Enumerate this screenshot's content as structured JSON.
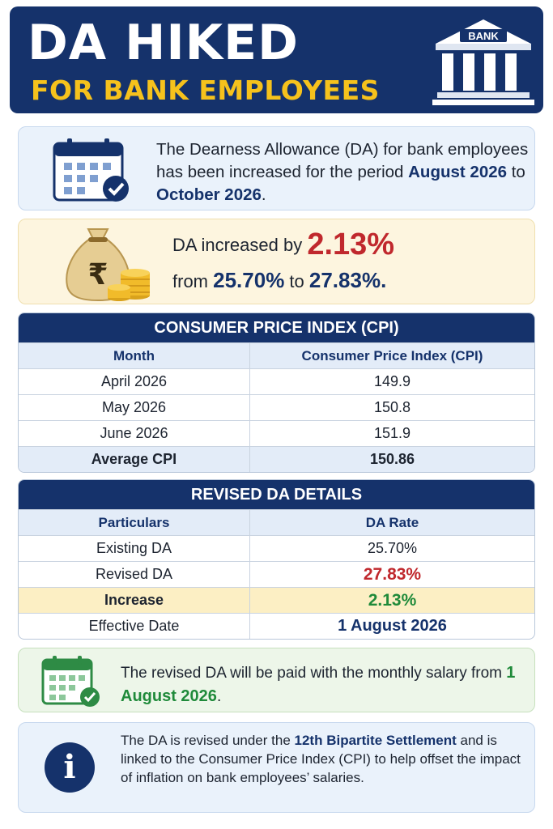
{
  "header": {
    "title_line1": "DA HIKED",
    "title_line2": "FOR BANK EMPLOYEES",
    "bank_sign": "BANK"
  },
  "intro": {
    "text_pre": "The Dearness Allowance (DA) for bank employees has been increased for the period ",
    "period_start": "August 2026",
    "text_mid": " to ",
    "period_end": "October 2026",
    "text_post": "."
  },
  "increase": {
    "line1_pre": "DA increased by ",
    "amount": "2.13%",
    "line2_pre": "from ",
    "from_value": "25.70%",
    "line2_mid": " to ",
    "to_value": "27.83%",
    "line2_post": ".",
    "currency_symbol": "₹"
  },
  "cpi_table": {
    "title": "CONSUMER PRICE INDEX (CPI)",
    "col_month": "Month",
    "col_cpi": "Consumer Price Index (CPI)",
    "rows": [
      {
        "month": "April 2026",
        "cpi": "149.9"
      },
      {
        "month": "May 2026",
        "cpi": "150.8"
      },
      {
        "month": "June 2026",
        "cpi": "151.9"
      }
    ],
    "footer_label": "Average CPI",
    "footer_value": "150.86"
  },
  "da_table": {
    "title": "REVISED DA DETAILS",
    "col_particulars": "Particulars",
    "col_rate": "DA Rate",
    "rows": [
      {
        "label": "Existing DA",
        "value": "25.70%"
      },
      {
        "label": "Revised DA",
        "value": "27.83%"
      },
      {
        "label": "Increase",
        "value": "2.13%"
      },
      {
        "label": "Effective Date",
        "value": "1 August 2026"
      }
    ]
  },
  "payment": {
    "text_pre": "The revised DA will be paid with the monthly salary from ",
    "date": "1 August 2026",
    "text_post": "."
  },
  "info": {
    "icon_letter": "i",
    "text_pre": "The DA is revised under the ",
    "settlement": "12th Bipartite Settlement",
    "text_post": " and is linked to the Consumer Price Index (CPI) to help offset the impact of inflation on bank employees’ salaries."
  },
  "colors": {
    "navy": "#15326b",
    "gold": "#f6c21c",
    "red": "#c0282d",
    "green": "#1f8a3a"
  }
}
